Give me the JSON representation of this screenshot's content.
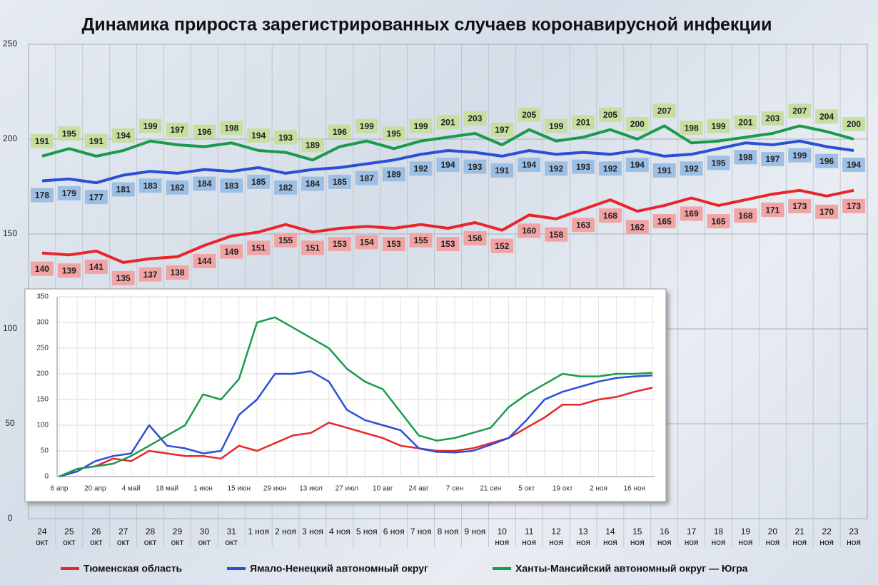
{
  "chart_data": [
    {
      "type": "line",
      "title": "Динамика прироста зарегистрированных случаев коронавирусной инфекции",
      "categories": [
        "24 окт",
        "25 окт",
        "26 окт",
        "27 окт",
        "28 окт",
        "29 окт",
        "30 окт",
        "31 окт",
        "1 ноя",
        "2 ноя",
        "3 ноя",
        "4 ноя",
        "5 ноя",
        "6 ноя",
        "7 ноя",
        "8 ноя",
        "9 ноя",
        "10 ноя",
        "11 ноя",
        "12 ноя",
        "13 ноя",
        "14 ноя",
        "15 ноя",
        "16 ноя",
        "17 ноя",
        "18 ноя",
        "19 ноя",
        "20 ноя",
        "21 ноя",
        "22 ноя",
        "23 ноя"
      ],
      "series": [
        {
          "name": "Тюменская область",
          "color": "#e8262a",
          "label_color": "#f2a3a3",
          "values": [
            140,
            139,
            141,
            135,
            137,
            138,
            144,
            149,
            151,
            155,
            151,
            153,
            154,
            153,
            155,
            153,
            156,
            152,
            160,
            158,
            163,
            168,
            162,
            165,
            169,
            165,
            168,
            171,
            173,
            170,
            173
          ]
        },
        {
          "name": "Ямало-Ненецкий автономный округ",
          "color": "#2a4fd6",
          "label_color": "#9dbfe4",
          "values": [
            178,
            179,
            177,
            181,
            183,
            182,
            184,
            183,
            185,
            182,
            184,
            185,
            187,
            189,
            192,
            194,
            193,
            191,
            194,
            192,
            193,
            192,
            194,
            191,
            192,
            195,
            198,
            197,
            199,
            196,
            194
          ]
        },
        {
          "name": "Ханты-Мансийский автономный округ — Югра",
          "color": "#1a9b4a",
          "label_color": "#c6dfa0",
          "values": [
            191,
            195,
            191,
            194,
            199,
            197,
            196,
            198,
            194,
            193,
            189,
            196,
            199,
            195,
            199,
            201,
            203,
            197,
            205,
            199,
            201,
            205,
            200,
            207,
            198,
            199,
            201,
            203,
            207,
            204,
            200
          ]
        }
      ],
      "ylim": [
        0,
        250
      ],
      "yticks": [
        0,
        50,
        100,
        150,
        200,
        250
      ],
      "grid": true,
      "legend": "bottom"
    },
    {
      "type": "line",
      "categories": [
        "6 апр",
        null,
        "20 апр",
        null,
        "4 май",
        null,
        "18 май",
        null,
        "1 июн",
        null,
        "15 июн",
        null,
        "29 июн",
        null,
        "13 июл",
        null,
        "27 июл",
        null,
        "10 авг",
        null,
        "24 авг",
        null,
        "7 сен",
        null,
        "21 сен",
        null,
        "5 окт",
        null,
        "19 окт",
        null,
        "2 ноя",
        null,
        "16 ноя",
        null
      ],
      "series": [
        {
          "color": "#e8262a",
          "values": [
            0,
            15,
            20,
            35,
            30,
            50,
            45,
            40,
            40,
            35,
            60,
            50,
            65,
            80,
            85,
            105,
            95,
            85,
            75,
            60,
            55,
            50,
            50,
            55,
            65,
            75,
            95,
            115,
            140,
            140,
            150,
            155,
            165,
            173
          ]
        },
        {
          "color": "#2a4fd6",
          "values": [
            0,
            10,
            30,
            40,
            45,
            100,
            60,
            55,
            45,
            50,
            120,
            150,
            200,
            200,
            205,
            185,
            130,
            110,
            100,
            90,
            55,
            48,
            47,
            50,
            62,
            75,
            110,
            150,
            165,
            175,
            185,
            192,
            195,
            197
          ]
        },
        {
          "color": "#1a9b4a",
          "values": [
            0,
            15,
            20,
            25,
            40,
            60,
            80,
            100,
            160,
            150,
            190,
            300,
            310,
            290,
            270,
            250,
            210,
            185,
            170,
            125,
            80,
            70,
            75,
            85,
            95,
            135,
            160,
            180,
            200,
            195,
            195,
            200,
            200,
            202
          ]
        }
      ],
      "ylim": [
        0,
        350
      ],
      "yticks": [
        0,
        50,
        100,
        150,
        200,
        250,
        300,
        350
      ],
      "grid": true
    }
  ]
}
